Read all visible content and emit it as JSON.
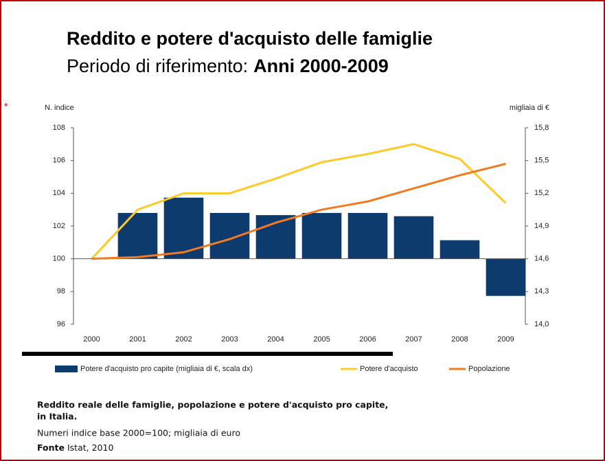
{
  "chart_data": {
    "type": "bar-line",
    "title": "Reddito e potere d'acquisto delle famiglie",
    "subtitle": "Periodo di riferimento:",
    "subtitle_bold": "Anni 2000-2009",
    "ylabel": "N. indice",
    "y2label": "migliaia di €",
    "categories": [
      "2000",
      "2001",
      "2002",
      "2003",
      "2004",
      "2005",
      "2006",
      "2007",
      "2008",
      "2009"
    ],
    "series": [
      {
        "name": "Potere d'acquisto pro capite (migliaia di €, scala dx)",
        "kind": "bar",
        "axis": "y2",
        "color": "#0d3b6e",
        "values": [
          null,
          15.02,
          15.16,
          15.02,
          15.0,
          15.02,
          15.02,
          14.99,
          14.77,
          14.26
        ]
      },
      {
        "name": "Potere d'acquisto",
        "kind": "line",
        "color": "#ffc926",
        "values": [
          100,
          103,
          104,
          104,
          104.9,
          105.9,
          106.4,
          107,
          106.1,
          103.4
        ]
      },
      {
        "name": "Popolazione",
        "kind": "line",
        "color": "#f47a20",
        "values": [
          100,
          100.1,
          100.4,
          101.2,
          102.2,
          103,
          103.5,
          104.3,
          105.1,
          105.8
        ]
      }
    ],
    "ylim": [
      96,
      108
    ],
    "yticks": [
      96,
      98,
      100,
      102,
      104,
      106,
      108
    ],
    "y2lim": [
      14.0,
      15.8
    ],
    "y2ticks": [
      {
        "value": 14.0,
        "label": "14,0"
      },
      {
        "value": 14.3,
        "label": "14,3"
      },
      {
        "value": 14.6,
        "label": "14,6"
      },
      {
        "value": 14.9,
        "label": "14,9"
      },
      {
        "value": 15.2,
        "label": "15,2"
      },
      {
        "value": 15.5,
        "label": "15,5"
      },
      {
        "value": 15.8,
        "label": "15,8"
      }
    ],
    "xaxis_at": 100,
    "legend": "bottom"
  },
  "notes": {
    "caption": "Reddito reale delle famiglie, popolazione e potere d'acquisto pro capite,",
    "caption2": "in Italia.",
    "description": "Numeri indice base 2000=100; migliaia di euro",
    "source_label": "Fonte",
    "source": "Istat, 2010"
  }
}
